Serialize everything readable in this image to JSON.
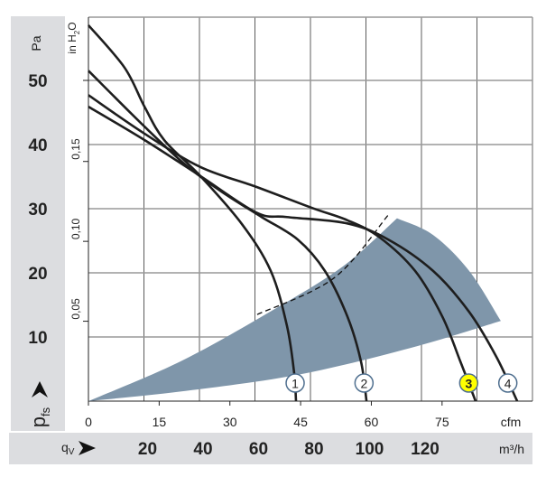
{
  "chart_data": {
    "type": "line",
    "title": "",
    "ylabel": "p_fs",
    "ylabel_main": "p",
    "ylabel_sub": "fs",
    "y_unit": "Pa",
    "y2_unit": "in H2O",
    "y2_unit_main": "in H",
    "y2_unit_sub": "2",
    "y2_unit_end": "O",
    "xlabel": "q_V",
    "xlabel_main": "q",
    "xlabel_sub": "V",
    "x_unit": "m³/h",
    "x2_unit": "cfm",
    "xlim_m3h": [
      0,
      160
    ],
    "ylim_pa": [
      0,
      60
    ],
    "grid": true,
    "y_ticks_pa": [
      "10",
      "20",
      "30",
      "40",
      "50"
    ],
    "y2_ticks_inh2o": [
      "0,05",
      "0,10",
      "0,15"
    ],
    "x_ticks_cfm": [
      "0",
      "15",
      "30",
      "45",
      "60",
      "75"
    ],
    "x_ticks_m3h": [
      "20",
      "40",
      "60",
      "80",
      "100",
      "120"
    ],
    "series": [
      {
        "name": "1",
        "points": [
          [
            0,
            58.6
          ],
          [
            13,
            52
          ],
          [
            20.2,
            45.9
          ],
          [
            27.3,
            40.7
          ],
          [
            40.3,
            35.1
          ],
          [
            55.3,
            27.6
          ],
          [
            65.7,
            20.3
          ],
          [
            71.5,
            11.8
          ],
          [
            74.1,
            4.5
          ],
          [
            74.8,
            0
          ]
        ]
      },
      {
        "name": "2",
        "points": [
          [
            0,
            51.5
          ],
          [
            20.2,
            42.8
          ],
          [
            34.8,
            36.9
          ],
          [
            47.8,
            32.7
          ],
          [
            62.4,
            28.7
          ],
          [
            75.4,
            25.2
          ],
          [
            85.2,
            20.3
          ],
          [
            93.3,
            13.2
          ],
          [
            98.2,
            6.2
          ],
          [
            100.2,
            0
          ]
        ]
      },
      {
        "name": "3",
        "highlighted": true,
        "points": [
          [
            0,
            47.7
          ],
          [
            20.2,
            41.7
          ],
          [
            40.3,
            36.5
          ],
          [
            60.5,
            33.4
          ],
          [
            80.7,
            30.1
          ],
          [
            93.3,
            28.2
          ],
          [
            104.7,
            25.6
          ],
          [
            117.7,
            20.3
          ],
          [
            127.5,
            13.2
          ],
          [
            134,
            6.2
          ],
          [
            139.5,
            0
          ]
        ]
      },
      {
        "name": "4",
        "points": [
          [
            0,
            45.9
          ],
          [
            20.2,
            40.7
          ],
          [
            40.3,
            35.1
          ],
          [
            60.5,
            29.4
          ],
          [
            71.5,
            28.7
          ],
          [
            93.3,
            27.7
          ],
          [
            108,
            25.2
          ],
          [
            124.2,
            20.3
          ],
          [
            137.2,
            13.9
          ],
          [
            147,
            6.9
          ],
          [
            154.5,
            0
          ]
        ]
      }
    ],
    "operating_region": [
      [
        0,
        0
      ],
      [
        33.2,
        6.2
      ],
      [
        65.7,
        14
      ],
      [
        91.7,
        21
      ],
      [
        111.2,
        28.5
      ],
      [
        124.2,
        25.9
      ],
      [
        137.2,
        20.3
      ],
      [
        148.6,
        12.5
      ],
      [
        116.1,
        8.3
      ],
      [
        75.4,
        4.1
      ],
      [
        33.2,
        1.5
      ],
      [
        0,
        0
      ]
    ],
    "dashed_limit": [
      [
        60.8,
        13.5
      ],
      [
        88.5,
        19.2
      ],
      [
        108,
        29
      ]
    ],
    "colors": {
      "region": "#7f96aa",
      "curve": "#1e1e1e",
      "marker_ring": "#4f6f8f",
      "highlight": "#ffff00",
      "panel": "#dcdde0",
      "grid": "#999999"
    }
  }
}
